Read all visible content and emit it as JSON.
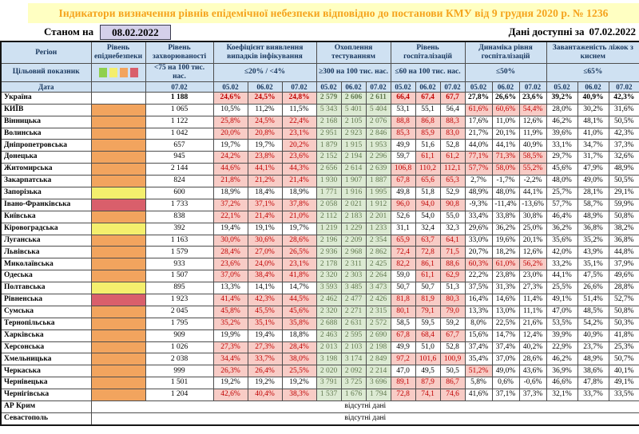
{
  "title": "Індикатори визначення рівнів епідемічної небезпеки відповідно до постанови КМУ від 9 грудня 2020 р. № 1236",
  "as_of": {
    "label": "Станом на",
    "date": "08.02.2022"
  },
  "available": {
    "label": "Дані доступні за",
    "date": "07.02.2022"
  },
  "no_data_text": "відсутні дані",
  "colors": {
    "title_bg": "#ffffc2",
    "title_text": "#f5a31c",
    "header_bg": "#cfe1f2",
    "header_text": "#17365d",
    "level_orange": "#f2a45e",
    "level_yellow": "#f4ef6d",
    "level_red": "#d95f6b",
    "exceeded_bg": "#f8ccc6",
    "exceeded_text": "#c00000",
    "ok_bg": "#dcead3",
    "ok_text": "#62794f",
    "date_box_bg": "#d4d0ea"
  },
  "legend_colors": [
    "#8fd04e",
    "#f4ee6d",
    "#f2a45e",
    "#d95f6b"
  ],
  "header": {
    "region": "Регіон",
    "target_label": "Цільовий показник",
    "date_label": "Дата",
    "epid_level": "Рівень епіднебезпеки",
    "incidence": {
      "title": "Рівень захворюваності",
      "target": "<75 на 100 тис. нас.",
      "date": "07.02"
    },
    "detection": {
      "title": "Коефіцієнт виявлення випадків інфікування",
      "target": "≤20% / <4%"
    },
    "testing": {
      "title": "Охоплення тестуванням",
      "target": "≥300 на 100 тис. нас."
    },
    "hospitalization": {
      "title": "Рівень госпіталізацій",
      "target": "≤60 на 100 тис. нас."
    },
    "dynamics": {
      "title": "Динаміка рівня госпіталізацій",
      "target": "≤50%"
    },
    "beds": {
      "title": "Завантаженість ліжок з киснем",
      "target": "≤65%"
    },
    "dates": [
      "05.02",
      "06.02",
      "07.02"
    ]
  },
  "rows": [
    {
      "region": "Україна",
      "level": "none",
      "bold": true,
      "inc": "1 188",
      "det": [
        "24,6%",
        "24,5%",
        "24,8%"
      ],
      "det_hi": [
        1,
        1,
        1
      ],
      "tst": [
        "2 579",
        "2 606",
        "2 611"
      ],
      "hosp": [
        "66,4",
        "67,4",
        "67,7"
      ],
      "hosp_hi": [
        1,
        1,
        1
      ],
      "dyn": [
        "27,8%",
        "26,6%",
        "23,6%"
      ],
      "dyn_hi": [
        0,
        0,
        0
      ],
      "bed": [
        "39,2%",
        "40,9%",
        "42,3%"
      ]
    },
    {
      "region": "КИЇВ",
      "level": "orange",
      "inc": "1 065",
      "det": [
        "10,5%",
        "11,2%",
        "11,5%"
      ],
      "det_hi": [
        0,
        0,
        0
      ],
      "tst": [
        "5 343",
        "5 401",
        "5 404"
      ],
      "hosp": [
        "53,1",
        "55,1",
        "56,4"
      ],
      "hosp_hi": [
        0,
        0,
        0
      ],
      "dyn": [
        "61,6%",
        "60,6%",
        "54,4%"
      ],
      "dyn_hi": [
        1,
        1,
        1
      ],
      "bed": [
        "28,0%",
        "30,2%",
        "31,6%"
      ]
    },
    {
      "region": "Вінницька",
      "level": "orange",
      "inc": "1 122",
      "det": [
        "25,8%",
        "24,5%",
        "22,4%"
      ],
      "det_hi": [
        1,
        1,
        1
      ],
      "tst": [
        "2 168",
        "2 105",
        "2 076"
      ],
      "hosp": [
        "88,8",
        "86,8",
        "88,3"
      ],
      "hosp_hi": [
        1,
        1,
        1
      ],
      "dyn": [
        "17,6%",
        "11,0%",
        "12,6%"
      ],
      "dyn_hi": [
        0,
        0,
        0
      ],
      "bed": [
        "46,2%",
        "48,1%",
        "50,5%"
      ]
    },
    {
      "region": "Волинська",
      "level": "orange",
      "inc": "1 042",
      "det": [
        "20,0%",
        "20,8%",
        "23,1%"
      ],
      "det_hi": [
        1,
        1,
        1
      ],
      "tst": [
        "2 951",
        "2 923",
        "2 846"
      ],
      "hosp": [
        "85,3",
        "85,9",
        "83,0"
      ],
      "hosp_hi": [
        1,
        1,
        1
      ],
      "dyn": [
        "21,7%",
        "20,1%",
        "11,9%"
      ],
      "dyn_hi": [
        0,
        0,
        0
      ],
      "bed": [
        "39,6%",
        "41,0%",
        "42,3%"
      ]
    },
    {
      "region": "Дніпропетровська",
      "level": "orange",
      "inc": "657",
      "det": [
        "19,7%",
        "19,7%",
        "20,2%"
      ],
      "det_hi": [
        0,
        0,
        1
      ],
      "tst": [
        "1 879",
        "1 915",
        "1 953"
      ],
      "hosp": [
        "49,9",
        "51,6",
        "52,8"
      ],
      "hosp_hi": [
        0,
        0,
        0
      ],
      "dyn": [
        "44,0%",
        "44,1%",
        "40,9%"
      ],
      "dyn_hi": [
        0,
        0,
        0
      ],
      "bed": [
        "33,1%",
        "34,7%",
        "37,3%"
      ]
    },
    {
      "region": "Донецька",
      "level": "orange",
      "inc": "945",
      "det": [
        "24,2%",
        "23,8%",
        "23,6%"
      ],
      "det_hi": [
        1,
        1,
        1
      ],
      "tst": [
        "2 152",
        "2 194",
        "2 296"
      ],
      "hosp": [
        "59,7",
        "61,1",
        "61,2"
      ],
      "hosp_hi": [
        0,
        1,
        1
      ],
      "dyn": [
        "77,1%",
        "71,3%",
        "58,5%"
      ],
      "dyn_hi": [
        1,
        1,
        1
      ],
      "bed": [
        "29,7%",
        "31,7%",
        "32,6%"
      ]
    },
    {
      "region": "Житомирська",
      "level": "orange",
      "inc": "2 144",
      "det": [
        "44,6%",
        "44,1%",
        "44,3%"
      ],
      "det_hi": [
        1,
        1,
        1
      ],
      "tst": [
        "2 656",
        "2 614",
        "2 639"
      ],
      "hosp": [
        "106,8",
        "110,2",
        "112,1"
      ],
      "hosp_hi": [
        1,
        1,
        1
      ],
      "dyn": [
        "57,7%",
        "58,0%",
        "55,2%"
      ],
      "dyn_hi": [
        1,
        1,
        1
      ],
      "bed": [
        "45,6%",
        "47,9%",
        "48,9%"
      ]
    },
    {
      "region": "Закарпатська",
      "level": "orange",
      "inc": "824",
      "det": [
        "21,8%",
        "21,2%",
        "21,4%"
      ],
      "det_hi": [
        1,
        1,
        1
      ],
      "tst": [
        "1 930",
        "1 907",
        "1 887"
      ],
      "hosp": [
        "67,8",
        "65,6",
        "65,3"
      ],
      "hosp_hi": [
        1,
        1,
        1
      ],
      "dyn": [
        "2,7%",
        "-1,7%",
        "-2,2%"
      ],
      "dyn_hi": [
        0,
        0,
        0
      ],
      "bed": [
        "48,0%",
        "49,0%",
        "50,5%"
      ]
    },
    {
      "region": "Запорізька",
      "level": "yellow",
      "inc": "600",
      "det": [
        "18,9%",
        "18,4%",
        "18,9%"
      ],
      "det_hi": [
        0,
        0,
        0
      ],
      "tst": [
        "1 771",
        "1 916",
        "1 995"
      ],
      "hosp": [
        "49,8",
        "51,8",
        "52,9"
      ],
      "hosp_hi": [
        0,
        0,
        0
      ],
      "dyn": [
        "48,9%",
        "48,0%",
        "44,1%"
      ],
      "dyn_hi": [
        0,
        0,
        0
      ],
      "bed": [
        "25,7%",
        "28,1%",
        "29,1%"
      ]
    },
    {
      "region": "Івано-Франківська",
      "level": "red",
      "inc": "1 733",
      "det": [
        "37,2%",
        "37,1%",
        "37,8%"
      ],
      "det_hi": [
        1,
        1,
        1
      ],
      "tst": [
        "2 058",
        "2 021",
        "1 912"
      ],
      "hosp": [
        "96,0",
        "94,0",
        "90,8"
      ],
      "hosp_hi": [
        1,
        1,
        1
      ],
      "dyn": [
        "-9,3%",
        "-11,4%",
        "-13,6%"
      ],
      "dyn_hi": [
        0,
        0,
        0
      ],
      "bed": [
        "57,7%",
        "58,7%",
        "59,9%"
      ]
    },
    {
      "region": "Київська",
      "level": "orange",
      "inc": "838",
      "det": [
        "22,1%",
        "21,4%",
        "21,0%"
      ],
      "det_hi": [
        1,
        1,
        1
      ],
      "tst": [
        "2 112",
        "2 183",
        "2 201"
      ],
      "hosp": [
        "52,6",
        "54,0",
        "55,0"
      ],
      "hosp_hi": [
        0,
        0,
        0
      ],
      "dyn": [
        "33,4%",
        "33,8%",
        "30,8%"
      ],
      "dyn_hi": [
        0,
        0,
        0
      ],
      "bed": [
        "46,4%",
        "48,9%",
        "50,8%"
      ]
    },
    {
      "region": "Кіровоградська",
      "level": "yellow",
      "inc": "392",
      "det": [
        "19,4%",
        "19,1%",
        "19,7%"
      ],
      "det_hi": [
        0,
        0,
        0
      ],
      "tst": [
        "1 219",
        "1 229",
        "1 233"
      ],
      "hosp": [
        "31,1",
        "32,4",
        "32,3"
      ],
      "hosp_hi": [
        0,
        0,
        0
      ],
      "dyn": [
        "29,6%",
        "36,2%",
        "25,0%"
      ],
      "dyn_hi": [
        0,
        0,
        0
      ],
      "bed": [
        "36,2%",
        "36,8%",
        "38,2%"
      ]
    },
    {
      "region": "Луганська",
      "level": "orange",
      "inc": "1 163",
      "det": [
        "30,0%",
        "30,6%",
        "28,6%"
      ],
      "det_hi": [
        1,
        1,
        1
      ],
      "tst": [
        "2 196",
        "2 209",
        "2 354"
      ],
      "hosp": [
        "65,9",
        "63,7",
        "64,1"
      ],
      "hosp_hi": [
        1,
        1,
        1
      ],
      "dyn": [
        "33,0%",
        "19,6%",
        "20,1%"
      ],
      "dyn_hi": [
        0,
        0,
        0
      ],
      "bed": [
        "35,6%",
        "35,2%",
        "36,8%"
      ]
    },
    {
      "region": "Львівська",
      "level": "orange",
      "inc": "1 579",
      "det": [
        "28,4%",
        "27,0%",
        "26,5%"
      ],
      "det_hi": [
        1,
        1,
        1
      ],
      "tst": [
        "2 936",
        "2 968",
        "2 862"
      ],
      "hosp": [
        "72,4",
        "72,8",
        "71,5"
      ],
      "hosp_hi": [
        1,
        1,
        1
      ],
      "dyn": [
        "20,7%",
        "18,2%",
        "12,6%"
      ],
      "dyn_hi": [
        0,
        0,
        0
      ],
      "bed": [
        "42,0%",
        "43,9%",
        "44,8%"
      ]
    },
    {
      "region": "Миколаївська",
      "level": "orange",
      "inc": "933",
      "det": [
        "23,6%",
        "24,0%",
        "23,1%"
      ],
      "det_hi": [
        1,
        1,
        1
      ],
      "tst": [
        "2 178",
        "2 311",
        "2 425"
      ],
      "hosp": [
        "82,2",
        "86,1",
        "88,6"
      ],
      "hosp_hi": [
        1,
        1,
        1
      ],
      "dyn": [
        "60,3%",
        "61,0%",
        "56,2%"
      ],
      "dyn_hi": [
        1,
        1,
        1
      ],
      "bed": [
        "33,2%",
        "35,1%",
        "37,9%"
      ]
    },
    {
      "region": "Одеська",
      "level": "orange",
      "inc": "1 507",
      "det": [
        "37,0%",
        "38,4%",
        "41,8%"
      ],
      "det_hi": [
        1,
        1,
        1
      ],
      "tst": [
        "2 320",
        "2 303",
        "2 264"
      ],
      "hosp": [
        "59,0",
        "61,1",
        "62,9"
      ],
      "hosp_hi": [
        0,
        1,
        1
      ],
      "dyn": [
        "22,2%",
        "23,8%",
        "23,0%"
      ],
      "dyn_hi": [
        0,
        0,
        0
      ],
      "bed": [
        "44,1%",
        "47,5%",
        "49,6%"
      ]
    },
    {
      "region": "Полтавська",
      "level": "yellow",
      "inc": "895",
      "det": [
        "13,3%",
        "14,1%",
        "14,7%"
      ],
      "det_hi": [
        0,
        0,
        0
      ],
      "tst": [
        "3 593",
        "3 485",
        "3 473"
      ],
      "hosp": [
        "50,7",
        "50,7",
        "51,3"
      ],
      "hosp_hi": [
        0,
        0,
        0
      ],
      "dyn": [
        "37,5%",
        "31,3%",
        "27,3%"
      ],
      "dyn_hi": [
        0,
        0,
        0
      ],
      "bed": [
        "25,5%",
        "26,6%",
        "28,8%"
      ]
    },
    {
      "region": "Рівненська",
      "level": "red",
      "inc": "1 923",
      "det": [
        "41,4%",
        "42,3%",
        "44,5%"
      ],
      "det_hi": [
        1,
        1,
        1
      ],
      "tst": [
        "2 462",
        "2 477",
        "2 426"
      ],
      "hosp": [
        "81,8",
        "81,9",
        "80,3"
      ],
      "hosp_hi": [
        1,
        1,
        1
      ],
      "dyn": [
        "16,4%",
        "14,6%",
        "11,4%"
      ],
      "dyn_hi": [
        0,
        0,
        0
      ],
      "bed": [
        "49,1%",
        "51,4%",
        "52,7%"
      ]
    },
    {
      "region": "Сумська",
      "level": "orange",
      "inc": "2 045",
      "det": [
        "45,8%",
        "45,5%",
        "45,6%"
      ],
      "det_hi": [
        1,
        1,
        1
      ],
      "tst": [
        "2 320",
        "2 271",
        "2 315"
      ],
      "hosp": [
        "80,1",
        "79,1",
        "79,0"
      ],
      "hosp_hi": [
        1,
        1,
        1
      ],
      "dyn": [
        "13,3%",
        "13,0%",
        "11,1%"
      ],
      "dyn_hi": [
        0,
        0,
        0
      ],
      "bed": [
        "47,0%",
        "48,5%",
        "50,8%"
      ]
    },
    {
      "region": "Тернопільська",
      "level": "orange",
      "inc": "1 795",
      "det": [
        "35,2%",
        "35,1%",
        "35,8%"
      ],
      "det_hi": [
        1,
        1,
        1
      ],
      "tst": [
        "2 688",
        "2 631",
        "2 572"
      ],
      "hosp": [
        "58,5",
        "59,5",
        "59,2"
      ],
      "hosp_hi": [
        0,
        0,
        0
      ],
      "dyn": [
        "8,0%",
        "22,5%",
        "21,6%"
      ],
      "dyn_hi": [
        0,
        0,
        0
      ],
      "bed": [
        "53,5%",
        "54,2%",
        "50,3%"
      ]
    },
    {
      "region": "Харківська",
      "level": "orange",
      "inc": "909",
      "det": [
        "19,9%",
        "19,4%",
        "18,8%"
      ],
      "det_hi": [
        0,
        0,
        0
      ],
      "tst": [
        "2 463",
        "2 595",
        "2 690"
      ],
      "hosp": [
        "67,8",
        "68,4",
        "67,7"
      ],
      "hosp_hi": [
        1,
        1,
        1
      ],
      "dyn": [
        "15,6%",
        "14,7%",
        "12,4%"
      ],
      "dyn_hi": [
        0,
        0,
        0
      ],
      "bed": [
        "39,9%",
        "40,9%",
        "41,8%"
      ]
    },
    {
      "region": "Херсонська",
      "level": "orange",
      "inc": "1 026",
      "det": [
        "27,3%",
        "27,3%",
        "28,4%"
      ],
      "det_hi": [
        1,
        1,
        1
      ],
      "tst": [
        "2 013",
        "2 103",
        "2 198"
      ],
      "hosp": [
        "49,9",
        "51,0",
        "52,8"
      ],
      "hosp_hi": [
        0,
        0,
        0
      ],
      "dyn": [
        "37,4%",
        "37,4%",
        "40,2%"
      ],
      "dyn_hi": [
        0,
        0,
        0
      ],
      "bed": [
        "22,9%",
        "23,7%",
        "25,3%"
      ]
    },
    {
      "region": "Хмельницька",
      "level": "orange",
      "inc": "2 038",
      "det": [
        "34,4%",
        "33,7%",
        "38,0%"
      ],
      "det_hi": [
        1,
        1,
        1
      ],
      "tst": [
        "3 198",
        "3 174",
        "2 849"
      ],
      "hosp": [
        "97,2",
        "101,6",
        "100,9"
      ],
      "hosp_hi": [
        1,
        1,
        1
      ],
      "dyn": [
        "35,4%",
        "37,0%",
        "28,6%"
      ],
      "dyn_hi": [
        0,
        0,
        0
      ],
      "bed": [
        "46,2%",
        "48,9%",
        "50,7%"
      ]
    },
    {
      "region": "Черкаська",
      "level": "orange",
      "inc": "999",
      "det": [
        "26,3%",
        "26,4%",
        "25,5%"
      ],
      "det_hi": [
        1,
        1,
        1
      ],
      "tst": [
        "2 020",
        "2 092",
        "2 214"
      ],
      "hosp": [
        "47,0",
        "49,5",
        "50,5"
      ],
      "hosp_hi": [
        0,
        0,
        0
      ],
      "dyn": [
        "51,2%",
        "49,0%",
        "43,6%"
      ],
      "dyn_hi": [
        1,
        0,
        0
      ],
      "bed": [
        "36,9%",
        "38,6%",
        "40,1%"
      ]
    },
    {
      "region": "Чернівецька",
      "level": "orange",
      "inc": "1 501",
      "det": [
        "19,2%",
        "19,2%",
        "19,2%"
      ],
      "det_hi": [
        0,
        0,
        0
      ],
      "tst": [
        "3 791",
        "3 725",
        "3 696"
      ],
      "hosp": [
        "89,1",
        "87,9",
        "86,7"
      ],
      "hosp_hi": [
        1,
        1,
        1
      ],
      "dyn": [
        "5,8%",
        "0,6%",
        "-0,6%"
      ],
      "dyn_hi": [
        0,
        0,
        0
      ],
      "bed": [
        "46,6%",
        "47,8%",
        "49,1%"
      ]
    },
    {
      "region": "Чернігівська",
      "level": "orange",
      "inc": "1 204",
      "det": [
        "42,6%",
        "40,4%",
        "38,3%"
      ],
      "det_hi": [
        1,
        1,
        1
      ],
      "tst": [
        "1 537",
        "1 676",
        "1 794"
      ],
      "hosp": [
        "72,8",
        "74,1",
        "74,6"
      ],
      "hosp_hi": [
        1,
        1,
        1
      ],
      "dyn": [
        "41,6%",
        "37,1%",
        "37,3%"
      ],
      "dyn_hi": [
        0,
        0,
        0
      ],
      "bed": [
        "32,1%",
        "33,7%",
        "33,5%"
      ]
    },
    {
      "region": "АР Крим",
      "no_data": true
    },
    {
      "region": "Севастополь",
      "no_data": true
    }
  ]
}
